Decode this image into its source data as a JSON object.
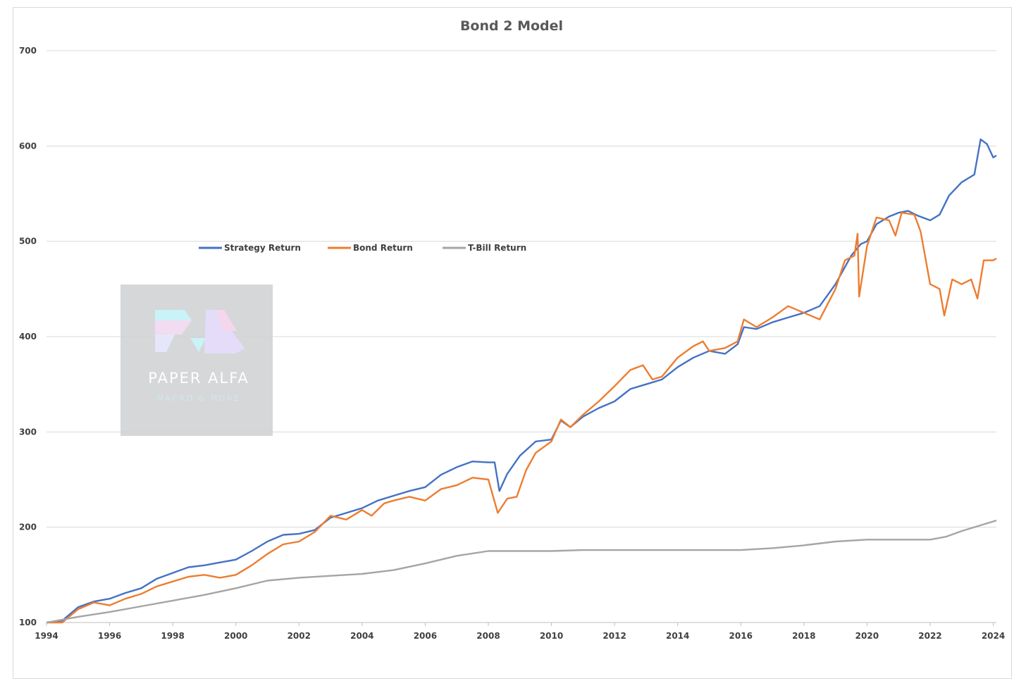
{
  "chart_data": {
    "type": "line",
    "title": "Bond 2 Model",
    "xlabel": "",
    "ylabel": "",
    "xlim": [
      1994,
      2024.1
    ],
    "ylim": [
      100,
      700
    ],
    "x_ticks": [
      "1994",
      "1996",
      "1998",
      "2000",
      "2002",
      "2004",
      "2006",
      "2008",
      "2010",
      "2012",
      "2014",
      "2016",
      "2018",
      "2020",
      "2022",
      "2024"
    ],
    "y_ticks": [
      "100",
      "200",
      "300",
      "400",
      "500",
      "600",
      "700"
    ],
    "grid": true,
    "legend_position": "upper-left",
    "series": [
      {
        "name": "Strategy Return",
        "color": "#4472C4",
        "points": [
          [
            1994,
            100
          ],
          [
            1994.5,
            102
          ],
          [
            1995,
            116
          ],
          [
            1995.5,
            122
          ],
          [
            1996,
            125
          ],
          [
            1996.5,
            131
          ],
          [
            1997,
            136
          ],
          [
            1997.5,
            146
          ],
          [
            1998,
            152
          ],
          [
            1998.5,
            158
          ],
          [
            1999,
            160
          ],
          [
            1999.5,
            163
          ],
          [
            2000,
            166
          ],
          [
            2000.5,
            175
          ],
          [
            2001,
            185
          ],
          [
            2001.5,
            192
          ],
          [
            2002,
            193
          ],
          [
            2002.5,
            197
          ],
          [
            2003,
            210
          ],
          [
            2003.5,
            215
          ],
          [
            2004,
            220
          ],
          [
            2004.5,
            228
          ],
          [
            2005,
            233
          ],
          [
            2005.5,
            238
          ],
          [
            2006,
            242
          ],
          [
            2006.5,
            255
          ],
          [
            2007,
            263
          ],
          [
            2007.5,
            269
          ],
          [
            2008,
            268
          ],
          [
            2008.2,
            268
          ],
          [
            2008.35,
            238
          ],
          [
            2008.6,
            256
          ],
          [
            2009,
            275
          ],
          [
            2009.5,
            290
          ],
          [
            2010,
            292
          ],
          [
            2010.3,
            312
          ],
          [
            2010.6,
            305
          ],
          [
            2011,
            316
          ],
          [
            2011.5,
            325
          ],
          [
            2012,
            332
          ],
          [
            2012.5,
            345
          ],
          [
            2013,
            350
          ],
          [
            2013.5,
            355
          ],
          [
            2014,
            368
          ],
          [
            2014.5,
            378
          ],
          [
            2015,
            385
          ],
          [
            2015.5,
            382
          ],
          [
            2015.9,
            392
          ],
          [
            2016.1,
            410
          ],
          [
            2016.5,
            408
          ],
          [
            2017,
            415
          ],
          [
            2017.5,
            420
          ],
          [
            2018,
            425
          ],
          [
            2018.5,
            432
          ],
          [
            2019,
            455
          ],
          [
            2019.5,
            485
          ],
          [
            2019.8,
            497
          ],
          [
            2020,
            500
          ],
          [
            2020.3,
            518
          ],
          [
            2020.7,
            526
          ],
          [
            2021,
            530
          ],
          [
            2021.3,
            532
          ],
          [
            2021.6,
            527
          ],
          [
            2022,
            522
          ],
          [
            2022.3,
            528
          ],
          [
            2022.6,
            548
          ],
          [
            2023,
            562
          ],
          [
            2023.4,
            570
          ],
          [
            2023.6,
            607
          ],
          [
            2023.8,
            602
          ],
          [
            2024,
            588
          ],
          [
            2024.1,
            590
          ]
        ]
      },
      {
        "name": "Bond Return",
        "color": "#ED7D31",
        "points": [
          [
            1994,
            100
          ],
          [
            1994.5,
            100
          ],
          [
            1995,
            114
          ],
          [
            1995.5,
            121
          ],
          [
            1996,
            118
          ],
          [
            1996.5,
            125
          ],
          [
            1997,
            130
          ],
          [
            1997.5,
            138
          ],
          [
            1998,
            143
          ],
          [
            1998.5,
            148
          ],
          [
            1999,
            150
          ],
          [
            1999.5,
            147
          ],
          [
            2000,
            150
          ],
          [
            2000.5,
            160
          ],
          [
            2001,
            172
          ],
          [
            2001.5,
            182
          ],
          [
            2002,
            185
          ],
          [
            2002.5,
            195
          ],
          [
            2003,
            212
          ],
          [
            2003.5,
            208
          ],
          [
            2004,
            218
          ],
          [
            2004.3,
            212
          ],
          [
            2004.7,
            225
          ],
          [
            2005,
            228
          ],
          [
            2005.5,
            232
          ],
          [
            2006,
            228
          ],
          [
            2006.5,
            240
          ],
          [
            2007,
            244
          ],
          [
            2007.5,
            252
          ],
          [
            2008,
            250
          ],
          [
            2008.3,
            215
          ],
          [
            2008.6,
            230
          ],
          [
            2008.9,
            232
          ],
          [
            2009.2,
            260
          ],
          [
            2009.5,
            278
          ],
          [
            2010,
            290
          ],
          [
            2010.3,
            313
          ],
          [
            2010.6,
            305
          ],
          [
            2011,
            318
          ],
          [
            2011.5,
            332
          ],
          [
            2012,
            348
          ],
          [
            2012.5,
            365
          ],
          [
            2012.9,
            370
          ],
          [
            2013.2,
            355
          ],
          [
            2013.5,
            358
          ],
          [
            2014,
            378
          ],
          [
            2014.5,
            390
          ],
          [
            2014.8,
            395
          ],
          [
            2015,
            385
          ],
          [
            2015.5,
            388
          ],
          [
            2015.9,
            395
          ],
          [
            2016.1,
            418
          ],
          [
            2016.5,
            410
          ],
          [
            2017,
            420
          ],
          [
            2017.5,
            432
          ],
          [
            2018,
            425
          ],
          [
            2018.5,
            418
          ],
          [
            2019,
            450
          ],
          [
            2019.3,
            480
          ],
          [
            2019.6,
            485
          ],
          [
            2019.7,
            508
          ],
          [
            2019.75,
            442
          ],
          [
            2020,
            495
          ],
          [
            2020.3,
            525
          ],
          [
            2020.7,
            522
          ],
          [
            2020.9,
            506
          ],
          [
            2021.1,
            530
          ],
          [
            2021.5,
            528
          ],
          [
            2021.7,
            510
          ],
          [
            2022,
            455
          ],
          [
            2022.3,
            450
          ],
          [
            2022.45,
            422
          ],
          [
            2022.7,
            460
          ],
          [
            2023,
            455
          ],
          [
            2023.3,
            460
          ],
          [
            2023.5,
            440
          ],
          [
            2023.7,
            480
          ],
          [
            2024,
            480
          ],
          [
            2024.1,
            482
          ]
        ]
      },
      {
        "name": "T-Bill Return",
        "color": "#A5A5A5",
        "points": [
          [
            1994,
            100
          ],
          [
            1995,
            106
          ],
          [
            1996,
            111
          ],
          [
            1997,
            117
          ],
          [
            1998,
            123
          ],
          [
            1999,
            129
          ],
          [
            2000,
            136
          ],
          [
            2001,
            144
          ],
          [
            2002,
            147
          ],
          [
            2003,
            149
          ],
          [
            2004,
            151
          ],
          [
            2005,
            155
          ],
          [
            2006,
            162
          ],
          [
            2007,
            170
          ],
          [
            2008,
            175
          ],
          [
            2009,
            175
          ],
          [
            2010,
            175
          ],
          [
            2011,
            176
          ],
          [
            2012,
            176
          ],
          [
            2013,
            176
          ],
          [
            2014,
            176
          ],
          [
            2015,
            176
          ],
          [
            2016,
            176
          ],
          [
            2017,
            178
          ],
          [
            2018,
            181
          ],
          [
            2019,
            185
          ],
          [
            2020,
            187
          ],
          [
            2021,
            187
          ],
          [
            2022,
            187
          ],
          [
            2022.5,
            190
          ],
          [
            2023,
            196
          ],
          [
            2024,
            206
          ],
          [
            2024.1,
            207
          ]
        ]
      }
    ]
  },
  "watermark": {
    "title": "PAPER ALFA",
    "subtitle": "MACRO & MORE"
  }
}
